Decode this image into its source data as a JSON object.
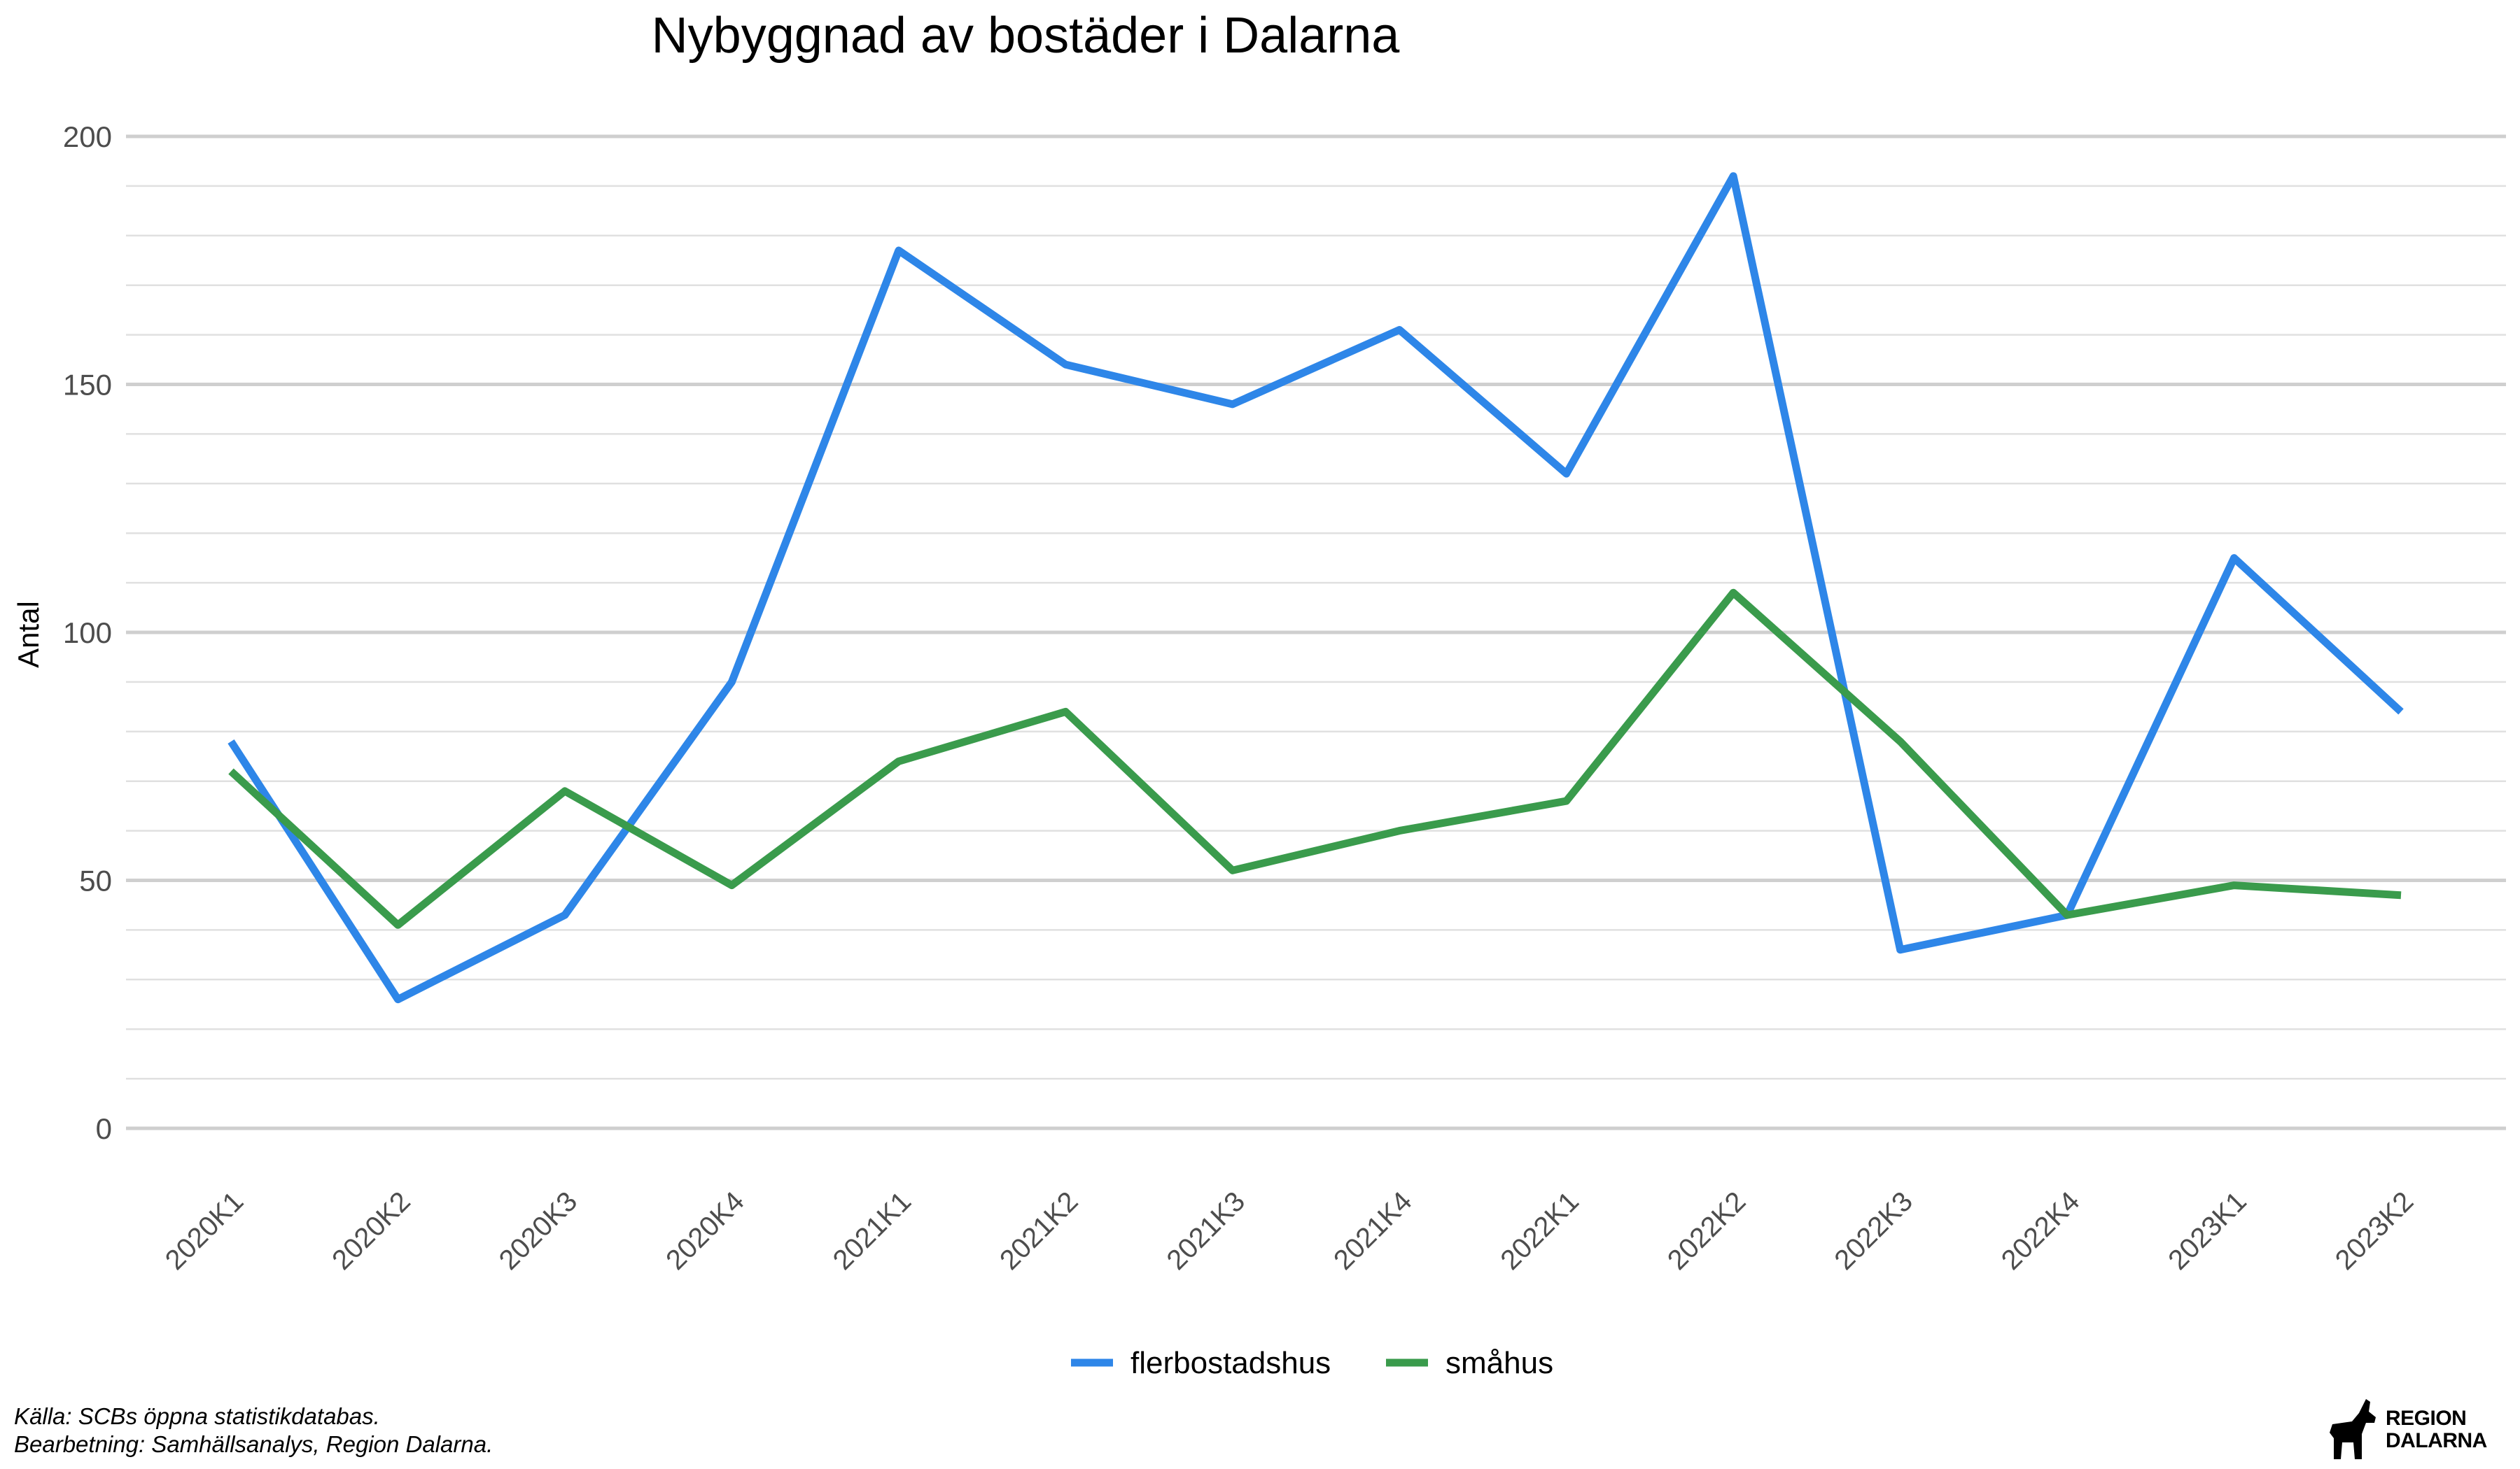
{
  "chart_data": {
    "type": "line",
    "title": "Nybyggnad av bostäder i Dalarna",
    "xlabel": "",
    "ylabel": "Antal",
    "ylim": [
      0,
      200
    ],
    "yticks": [
      0,
      50,
      100,
      150,
      200
    ],
    "grid": true,
    "legend_position": "bottom",
    "categories": [
      "2020K1",
      "2020K2",
      "2020K3",
      "2020K4",
      "2021K1",
      "2021K2",
      "2021K3",
      "2021K4",
      "2022K1",
      "2022K2",
      "2022K3",
      "2022K4",
      "2023K1",
      "2023K2"
    ],
    "series": [
      {
        "name": "flerbostadshus",
        "color": "#2e86e8",
        "values": [
          78,
          26,
          43,
          90,
          177,
          154,
          146,
          161,
          132,
          192,
          36,
          43,
          115,
          84
        ]
      },
      {
        "name": "småhus",
        "color": "#3a9b4c",
        "values": [
          72,
          41,
          68,
          49,
          74,
          84,
          52,
          60,
          66,
          108,
          78,
          43,
          49,
          47
        ]
      }
    ]
  },
  "caption": {
    "line1": "Källa: SCBs öppna statistikdatabas.",
    "line2": "Bearbetning: Samhällsanalys, Region Dalarna."
  },
  "logo": {
    "line1": "REGION",
    "line2": "DALARNA"
  }
}
